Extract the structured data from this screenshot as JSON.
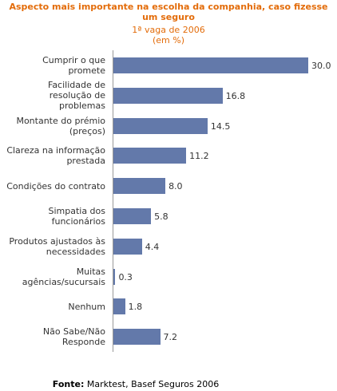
{
  "chart_data": {
    "type": "bar",
    "orientation": "horizontal",
    "title": "Aspecto mais importante na escolha da companhia, caso fizesse um seguro",
    "subtitle": "1ª vaga de 2006",
    "unit": "(em %)",
    "categories": [
      "Cumprir o que promete",
      "Facilidade de resolução de problemas",
      "Montante do prémio (preços)",
      "Clareza na informação prestada",
      "Condições do contrato",
      "Simpatia dos funcionários",
      "Produtos ajustados às necessidades",
      "Muitas agências/sucursais",
      "Nenhum",
      "Não Sabe/Não Responde"
    ],
    "values": [
      30,
      16.8,
      14.5,
      11.2,
      8,
      5.8,
      4.4,
      0.3,
      1.8,
      7.2
    ],
    "value_labels": [
      "30.0",
      "16.8",
      "14.5",
      "11.2",
      "8.0",
      "5.8",
      "4.4",
      "0.3",
      "1.8",
      "7.2"
    ],
    "color": "#6379aa",
    "xlim": [
      0,
      30
    ],
    "source_label": "Fonte:",
    "source": "Marktest, Basef Seguros 2006"
  }
}
